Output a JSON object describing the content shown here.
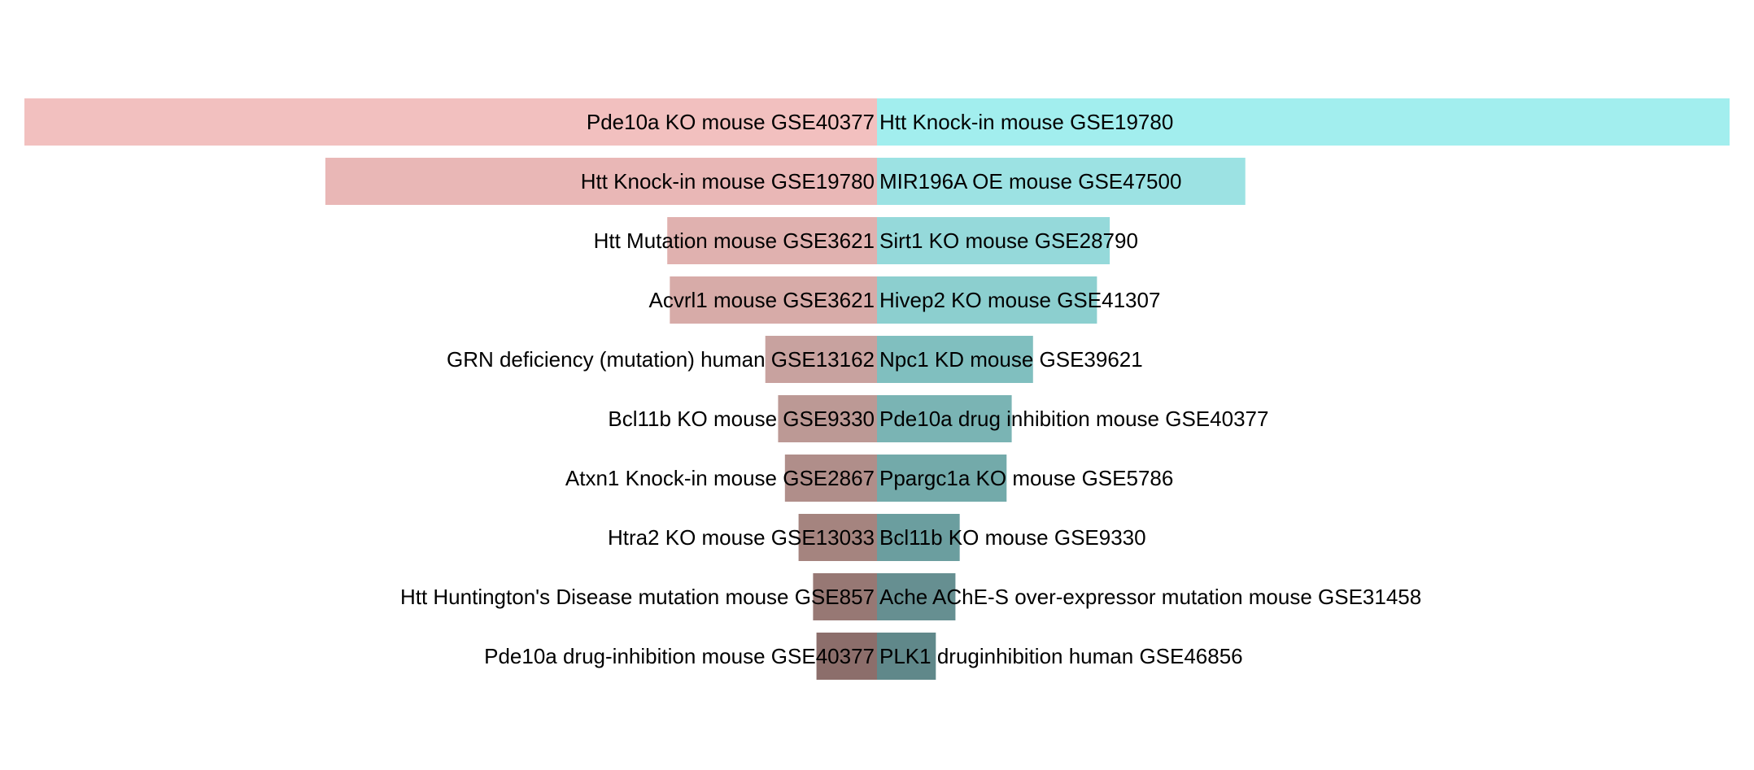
{
  "chart_data": {
    "type": "bar",
    "orientation": "horizontal-diverging",
    "title": "",
    "xlabel": "",
    "ylabel": "",
    "grid": false,
    "legend": "none",
    "xlim": [
      -1,
      1
    ],
    "series": [
      {
        "side": "left",
        "labels": [
          "Pde10a KO mouse GSE40377",
          "Htt Knock-in mouse GSE19780",
          "Htt Mutation mouse GSE3621",
          "Acvrl1 mouse GSE3621",
          "GRN deficiency (mutation) human GSE13162",
          "Bcl11b KO mouse GSE9330",
          "Atxn1 Knock-in mouse GSE2867",
          "Htra2 KO mouse GSE13033",
          "Htt Huntington's Disease mutation mouse GSE857",
          "Pde10a drug-inhibition mouse GSE40377"
        ],
        "values": [
          1.0,
          0.647,
          0.246,
          0.243,
          0.131,
          0.116,
          0.108,
          0.092,
          0.075,
          0.071
        ],
        "colors": [
          "#f2c0bf",
          "#e9b7b6",
          "#e0b1af",
          "#d7aba8",
          "#c8a29f",
          "#bc9995",
          "#b08e8a",
          "#a5847f",
          "#977874",
          "#8c6e6b"
        ]
      },
      {
        "side": "right",
        "labels": [
          "Htt Knock-in mouse GSE19780",
          "MIR196A OE mouse GSE47500",
          "Sirt1 KO mouse GSE28790",
          "Hivep2 KO mouse GSE41307",
          "Npc1 KD mouse GSE39621",
          "Pde10a drug inhibition mouse GSE40377",
          "Ppargc1a KO mouse GSE5786",
          "Bcl11b KO mouse GSE9330",
          "Ache AChE-S over-expressor mutation mouse GSE31458",
          "PLK1 druginhibition human GSE46856"
        ],
        "values": [
          1.0,
          0.432,
          0.273,
          0.258,
          0.183,
          0.158,
          0.152,
          0.097,
          0.092,
          0.069
        ],
        "colors": [
          "#a2eeee",
          "#9ce2e3",
          "#95d9da",
          "#8ccfcf",
          "#80bfbf",
          "#7ab4b4",
          "#73aaaa",
          "#6b9e9f",
          "#668f91",
          "#60888a"
        ]
      }
    ]
  }
}
